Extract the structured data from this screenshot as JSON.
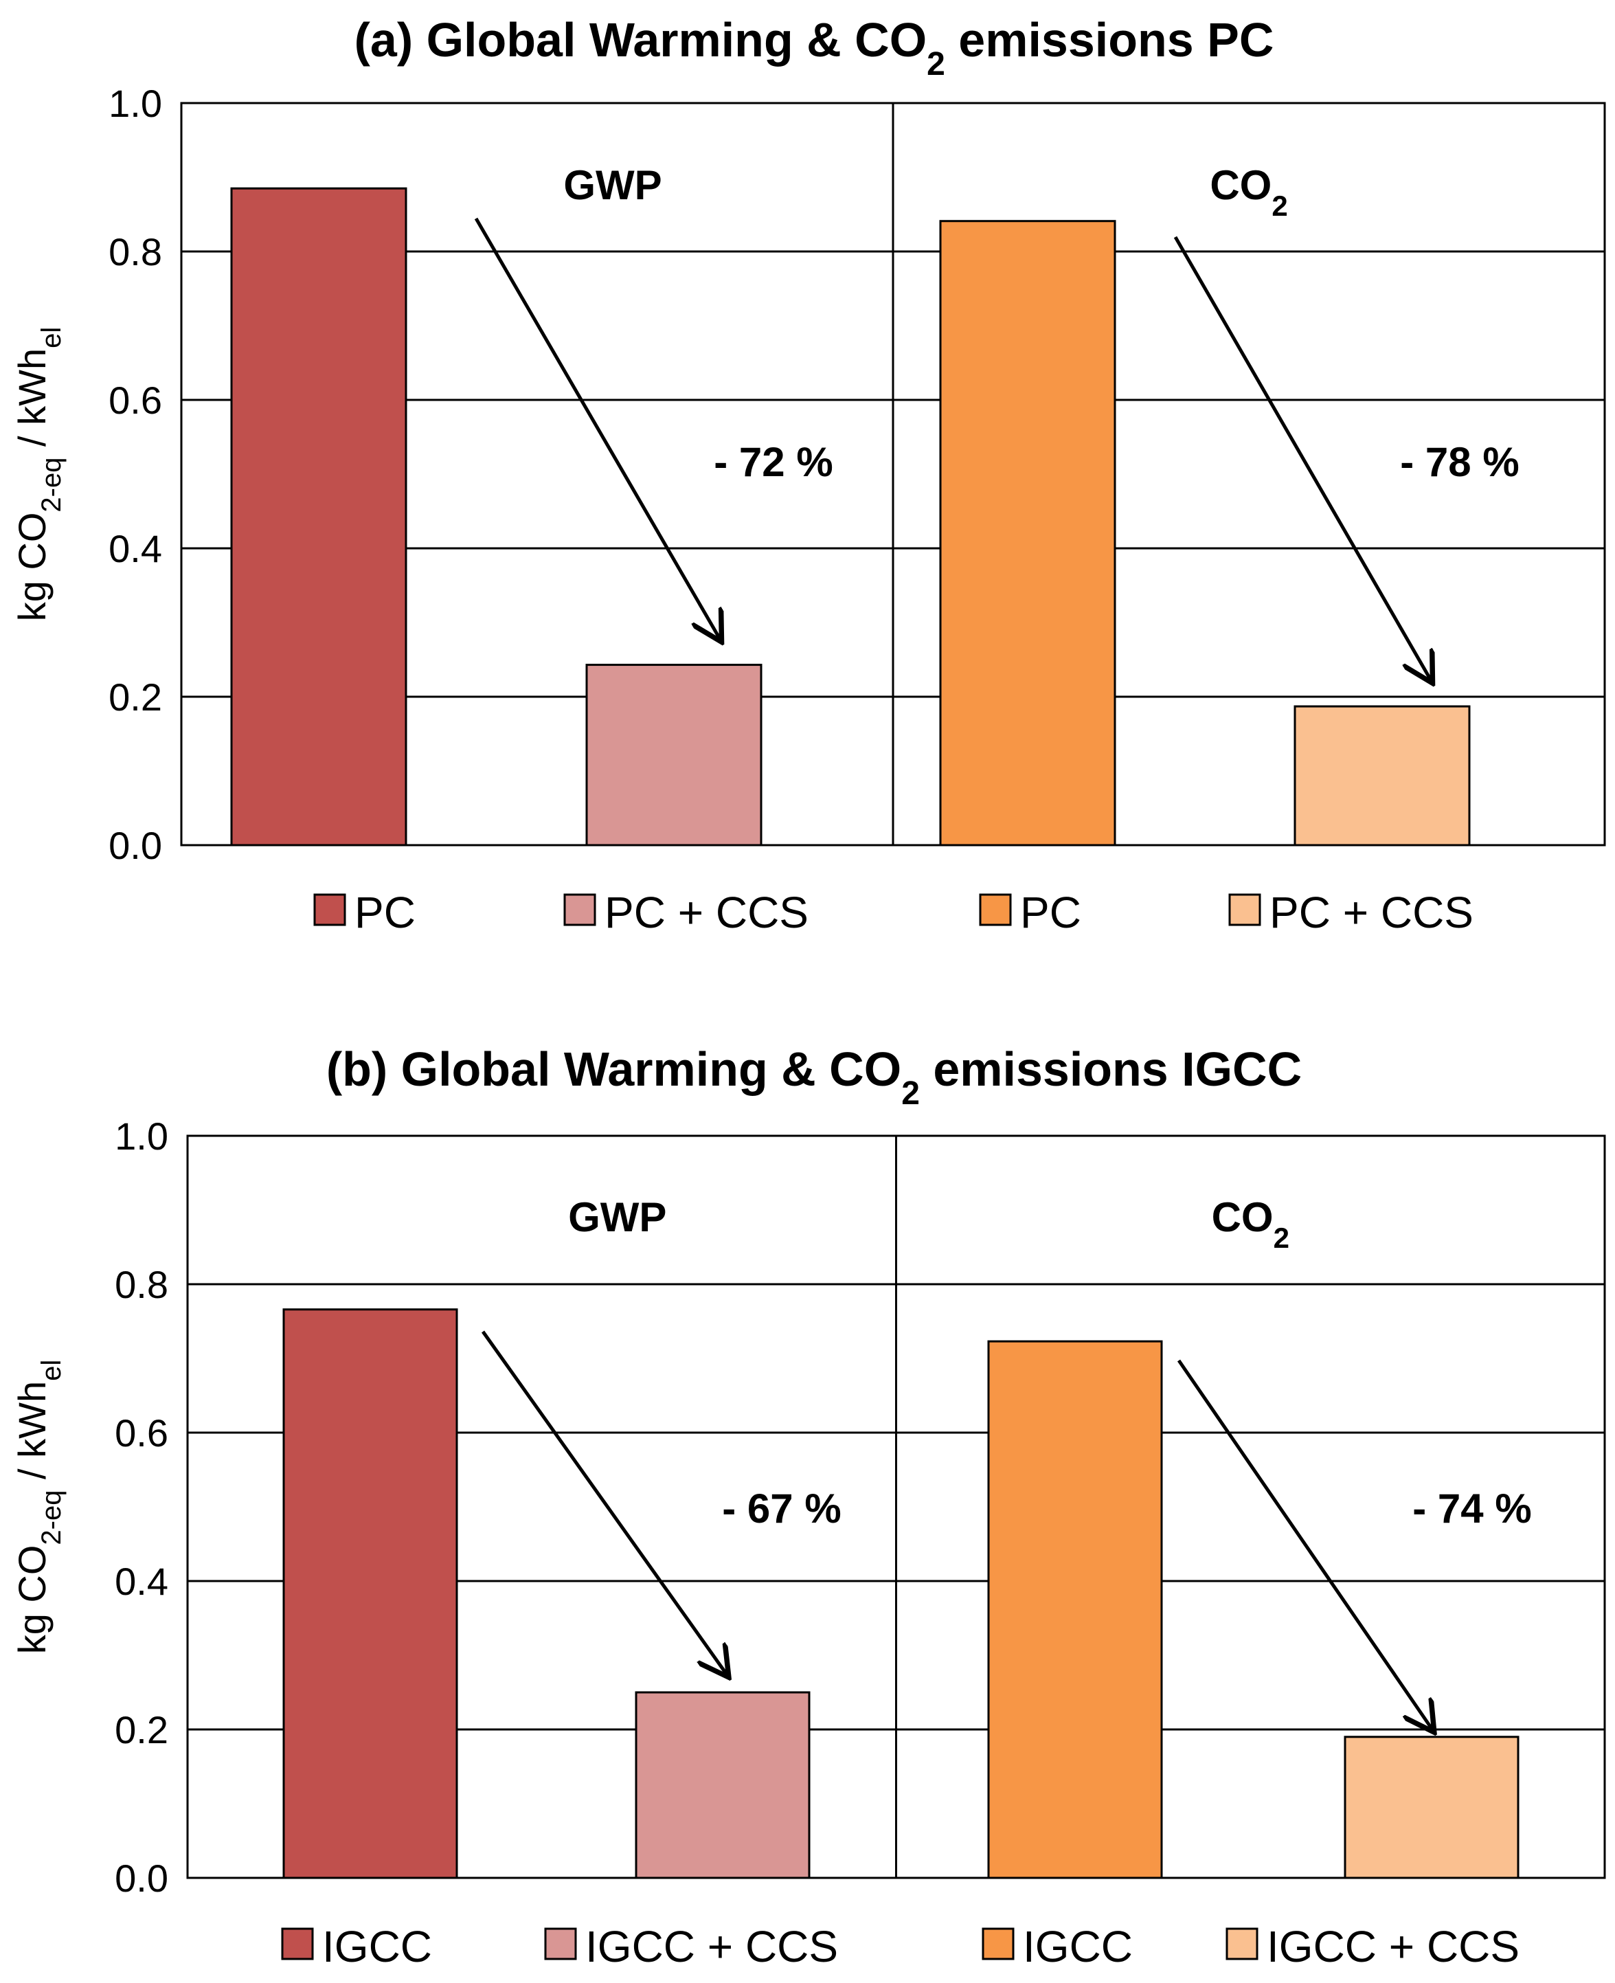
{
  "colors": {
    "gwp_base": "#C0504D",
    "gwp_ccs": "#D99694",
    "co2_base": "#F79646",
    "co2_ccs": "#FAC090"
  },
  "chart_data": [
    {
      "type": "bar",
      "title": {
        "pre": "(a) Global Warming & CO",
        "sub": "2",
        "post": " emissions PC"
      },
      "ylabel": {
        "pre": "kg CO",
        "sub": "2-eq",
        "mid": " / kWh",
        "sub2": "el"
      },
      "ylim": [
        0,
        1.0
      ],
      "yticks": [
        "0.0",
        "0.2",
        "0.4",
        "0.6",
        "0.8",
        "1.0"
      ],
      "grid": true,
      "panels": [
        {
          "label": {
            "pre": "GWP",
            "sub": ""
          },
          "reduction": "- 72 %"
        },
        {
          "label": {
            "pre": "CO",
            "sub": "2"
          },
          "reduction": "- 78 %"
        }
      ],
      "series": [
        {
          "name": "PC",
          "value": 0.885
        },
        {
          "name": "PC + CCS",
          "value": 0.243
        },
        {
          "name": "PC",
          "value": 0.841
        },
        {
          "name": "PC + CCS",
          "value": 0.187
        }
      ]
    },
    {
      "type": "bar",
      "title": {
        "pre": "(b) Global Warming & CO",
        "sub": "2",
        "post": " emissions IGCC"
      },
      "ylabel": {
        "pre": "kg CO",
        "sub": "2-eq",
        "mid": " / kWh",
        "sub2": "el"
      },
      "ylim": [
        0,
        1.0
      ],
      "yticks": [
        "0.0",
        "0.2",
        "0.4",
        "0.6",
        "0.8",
        "1.0"
      ],
      "grid": true,
      "panels": [
        {
          "label": {
            "pre": "GWP",
            "sub": ""
          },
          "reduction": "- 67 %"
        },
        {
          "label": {
            "pre": "CO",
            "sub": "2"
          },
          "reduction": "- 74 %"
        }
      ],
      "series": [
        {
          "name": "IGCC",
          "value": 0.766
        },
        {
          "name": "IGCC + CCS",
          "value": 0.25
        },
        {
          "name": "IGCC",
          "value": 0.723
        },
        {
          "name": "IGCC + CCS",
          "value": 0.19
        }
      ]
    }
  ]
}
